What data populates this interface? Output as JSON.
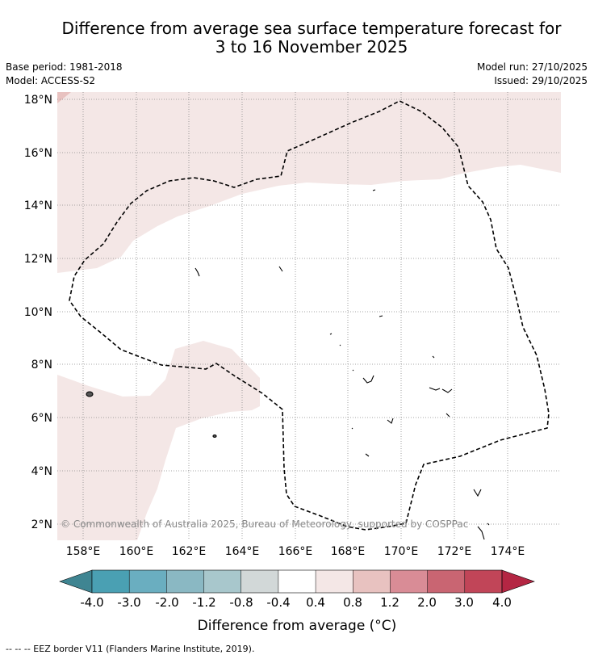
{
  "header": {
    "title_line1": "Difference from average sea surface temperature forecast for",
    "title_line2": "3 to 16 November 2025",
    "base_period": "Base period: 1981-2018",
    "model": "Model: ACCESS-S2",
    "model_run": "Model run: 27/10/2025",
    "issued": "Issued: 29/10/2025"
  },
  "map": {
    "lat_labels": [
      "18°N",
      "16°N",
      "14°N",
      "12°N",
      "10°N",
      "8°N",
      "6°N",
      "4°N",
      "2°N"
    ],
    "lon_labels": [
      "158°E",
      "160°E",
      "162°E",
      "164°E",
      "166°E",
      "168°E",
      "170°E",
      "172°E",
      "174°E"
    ],
    "copyright": "© Commonwealth of Australia 2025, Bureau of Meteorology, supported by COSPPac",
    "region_color": "#f4e7e6",
    "eez_color": "#000000"
  },
  "colorbar": {
    "labels": [
      "-4.0",
      "-3.0",
      "-2.0",
      "-1.2",
      "-0.8",
      "-0.4",
      "0.4",
      "0.8",
      "1.2",
      "2.0",
      "3.0",
      "4.0"
    ],
    "colors": [
      "#3f8592",
      "#4aa0b3",
      "#6aaec0",
      "#8ab8c3",
      "#a8c7cc",
      "#d2d8d8",
      "#ffffff",
      "#f4e7e6",
      "#e8c2c0",
      "#d98c96",
      "#c96572",
      "#c14558",
      "#b42643"
    ],
    "title": "Difference from average (°C)"
  },
  "footer": {
    "legend": "--  --  -- EEZ border V11 (Flanders Marine Institute, 2019)."
  }
}
